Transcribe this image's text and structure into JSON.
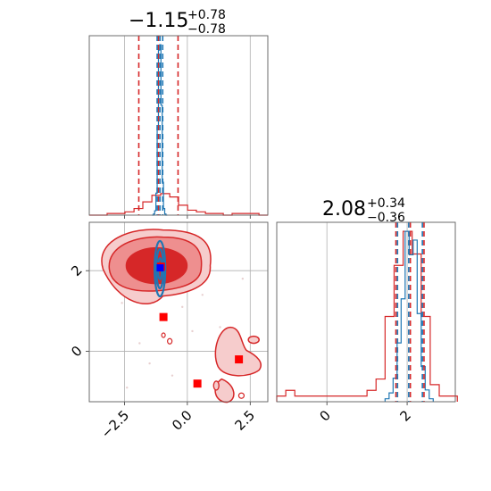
{
  "chart_data": {
    "type": "corner",
    "colors": {
      "reference": "#d62728",
      "samples": "#1f77b4",
      "truth_marker": "#ff0000",
      "mean_marker": "#0000ff"
    },
    "grid": true,
    "param_x": {
      "title": {
        "value": "−1.15",
        "plus": "+0.78",
        "minus": "−0.78"
      },
      "xlim": [
        -3.9,
        3.2
      ],
      "ticks": [
        {
          "value": -2.5,
          "label": "−2.5"
        },
        {
          "value": 0.0,
          "label": "0.0"
        },
        {
          "value": 2.5,
          "label": "2.5"
        }
      ],
      "quantiles_reference": [
        -1.93,
        -1.15,
        -0.37
      ],
      "quantiles_samples": [
        -1.2,
        -1.09,
        -0.98
      ],
      "histogram_reference": {
        "bin_edges": [
          -3.9,
          -3.54,
          -3.19,
          -2.83,
          -2.48,
          -2.12,
          -1.77,
          -1.41,
          -1.06,
          -0.7,
          -0.35,
          0.01,
          0.36,
          0.72,
          1.07,
          1.43,
          1.78,
          2.14,
          2.49,
          2.85,
          3.2
        ],
        "counts": [
          0,
          0,
          1,
          1,
          2,
          4,
          8,
          12,
          13,
          11,
          6,
          3,
          2,
          1,
          1,
          0,
          1,
          1,
          1,
          0
        ]
      },
      "histogram_samples": {
        "bin_edges": [
          -1.4,
          -1.35,
          -1.3,
          -1.25,
          -1.2,
          -1.15,
          -1.1,
          -1.05,
          -1.0,
          -0.95,
          -0.9,
          -0.85,
          -0.8
        ],
        "counts": [
          0,
          1,
          4,
          20,
          80,
          150,
          155,
          100,
          30,
          6,
          1,
          0
        ]
      }
    },
    "param_y": {
      "title": {
        "value": "2.08",
        "plus": "+0.34",
        "minus": "−0.36"
      },
      "lim": [
        -1.25,
        3.2
      ],
      "ticks": [
        {
          "value": 0,
          "label": "0"
        },
        {
          "value": 2,
          "label": "2"
        }
      ],
      "quantiles_reference": [
        1.72,
        2.08,
        2.42
      ],
      "quantiles_samples": [
        1.76,
        2.04,
        2.38
      ],
      "histogram_reference": {
        "bin_edges": [
          -1.25,
          -1.025,
          -0.8,
          -0.575,
          -0.35,
          -0.125,
          0.1,
          0.325,
          0.55,
          0.775,
          1.0,
          1.225,
          1.45,
          1.675,
          1.9,
          2.125,
          2.35,
          2.575,
          2.8,
          3.025,
          3.25
        ],
        "counts": [
          1,
          2,
          1,
          1,
          1,
          1,
          1,
          1,
          1,
          1,
          2,
          4,
          15,
          24,
          30,
          26,
          15,
          3,
          1,
          1
        ]
      },
      "histogram_samples": {
        "bin_edges": [
          1.45,
          1.55,
          1.65,
          1.75,
          1.85,
          1.95,
          2.05,
          2.15,
          2.25,
          2.35,
          2.45,
          2.55,
          2.65
        ],
        "counts": [
          1,
          3,
          8,
          20,
          35,
          58,
          50,
          55,
          30,
          12,
          4,
          1
        ]
      }
    },
    "scatter": {
      "red_markers": [
        {
          "x": -1.05,
          "y": 2.1
        },
        {
          "x": -0.95,
          "y": 0.85
        },
        {
          "x": 0.4,
          "y": -0.8
        },
        {
          "x": 2.05,
          "y": -0.2
        }
      ],
      "blue_markers": [
        {
          "x": -1.08,
          "y": 2.07
        }
      ],
      "faint_points": [
        {
          "x": -2.9,
          "y": 2.7
        },
        {
          "x": -2.6,
          "y": 1.2
        },
        {
          "x": -3.2,
          "y": 1.9
        },
        {
          "x": -0.2,
          "y": 1.1
        },
        {
          "x": 0.6,
          "y": 1.4
        },
        {
          "x": 0.2,
          "y": 0.5
        },
        {
          "x": -1.5,
          "y": -0.3
        },
        {
          "x": -2.4,
          "y": -0.9
        },
        {
          "x": -0.6,
          "y": -0.6
        },
        {
          "x": 1.3,
          "y": 0.6
        },
        {
          "x": 2.6,
          "y": 0.3
        },
        {
          "x": 1.7,
          "y": -1.0
        },
        {
          "x": -1.9,
          "y": 0.2
        },
        {
          "x": -0.4,
          "y": 2.7
        },
        {
          "x": 0.9,
          "y": 2.2
        },
        {
          "x": 2.2,
          "y": 1.8
        }
      ]
    }
  }
}
